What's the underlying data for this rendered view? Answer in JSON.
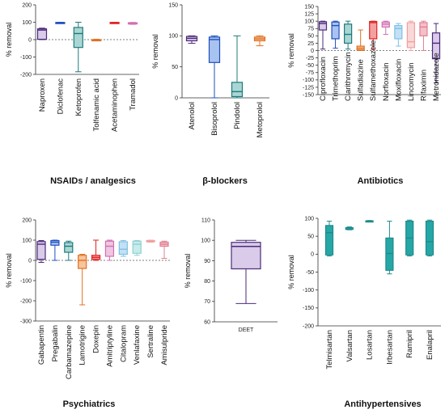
{
  "chart_data": [
    {
      "id": "nsaids",
      "type": "box",
      "title": "NSAIDs / analgesics",
      "ylabel": "% removal",
      "ylim": [
        -200,
        200
      ],
      "yticks": [
        -200,
        -100,
        0,
        100,
        200
      ],
      "zero_line": true,
      "categories": [
        "Naproxen",
        "Diclofenac",
        "Ketoprofen",
        "Tolfenamic acid",
        "Acetaminophen",
        "Tramadol"
      ],
      "boxes": [
        {
          "name": "Naproxen",
          "min": 0,
          "q1": 2,
          "median": 55,
          "q3": 62,
          "max": 66,
          "color": "#4b2a7a",
          "fill": "#d9cbe9"
        },
        {
          "name": "Diclofenac",
          "min": 94,
          "q1": 95,
          "median": 97,
          "q3": 99,
          "max": 100,
          "color": "#1f4fbf",
          "fill": "#a9c3f0"
        },
        {
          "name": "Ketoprofen",
          "min": -185,
          "q1": -45,
          "median": 35,
          "q3": 70,
          "max": 100,
          "color": "#1f7a7a",
          "fill": "#a9d6d4"
        },
        {
          "name": "Tolfenamic acid",
          "min": -6,
          "q1": -4,
          "median": -2,
          "q3": 0,
          "max": 2,
          "color": "#e07020",
          "fill": "#f7c49c"
        },
        {
          "name": "Acetaminophen",
          "min": 96,
          "q1": 97,
          "median": 98,
          "q3": 99,
          "max": 100,
          "color": "#e02020",
          "fill": "#f4a0a0"
        },
        {
          "name": "Tramadol",
          "min": 88,
          "q1": 91,
          "median": 94,
          "q3": 97,
          "max": 99,
          "color": "#d070b0",
          "fill": "#efc6e2"
        }
      ]
    },
    {
      "id": "beta",
      "type": "box",
      "title": "β-blockers",
      "ylabel": "% removal",
      "ylim": [
        0,
        150
      ],
      "yticks": [
        0,
        50,
        100,
        150
      ],
      "zero_line": false,
      "categories": [
        "Atenolol",
        "Bisoprolol",
        "Pindolol",
        "Metoprolol"
      ],
      "boxes": [
        {
          "name": "Atenolol",
          "min": 88,
          "q1": 92,
          "median": 96,
          "q3": 99,
          "max": 100,
          "color": "#4b2a7a",
          "fill": "#d9cbe9"
        },
        {
          "name": "Bisoprolol",
          "min": 0,
          "q1": 57,
          "median": 94,
          "q3": 98,
          "max": 100,
          "color": "#1f4fbf",
          "fill": "#a9c3f0"
        },
        {
          "name": "Pindolol",
          "min": 0,
          "q1": 2,
          "median": 10,
          "q3": 25,
          "max": 100,
          "color": "#1f7a7a",
          "fill": "#a9d6d4"
        },
        {
          "name": "Metoprolol",
          "min": 84,
          "q1": 92,
          "median": 95,
          "q3": 98,
          "max": 100,
          "color": "#e07020",
          "fill": "#f7c49c"
        }
      ]
    },
    {
      "id": "antibiotics",
      "type": "box",
      "title": "Antibiotics",
      "ylabel": "% removal",
      "ylim": [
        -150,
        150
      ],
      "yticks": [
        -150,
        -125,
        -100,
        -75,
        -50,
        -25,
        0,
        25,
        50,
        75,
        100,
        125,
        150
      ],
      "zero_line": true,
      "categories": [
        "Ciprofloxacin",
        "Trimethoprim",
        "Clarithromycin",
        "Sulfadiazine",
        "Sulfamethoxazole",
        "Norfloxacin",
        "Moxifloxacin",
        "Lincomycin",
        "Rifaximin",
        "Metronidazole"
      ],
      "boxes": [
        {
          "name": "Ciprofloxacin",
          "min": 5,
          "q1": 70,
          "median": 92,
          "q3": 98,
          "max": 100,
          "color": "#4b2a7a",
          "fill": "#d9cbe9"
        },
        {
          "name": "Trimethoprim",
          "min": 8,
          "q1": 40,
          "median": 85,
          "q3": 97,
          "max": 100,
          "color": "#1f4fbf",
          "fill": "#a9c3f0"
        },
        {
          "name": "Clarithromycin",
          "min": 5,
          "q1": 25,
          "median": 55,
          "q3": 90,
          "max": 100,
          "color": "#1f7a7a",
          "fill": "#a9d6d4"
        },
        {
          "name": "Sulfadiazine",
          "min": 0,
          "q1": 2,
          "median": 8,
          "q3": 15,
          "max": 70,
          "color": "#e07020",
          "fill": "#f7c49c"
        },
        {
          "name": "Sulfamethoxazole",
          "min": 5,
          "q1": 40,
          "median": 95,
          "q3": 99,
          "max": 100,
          "color": "#e02020",
          "fill": "#f4a0a0"
        },
        {
          "name": "Norfloxacin",
          "min": 55,
          "q1": 80,
          "median": 90,
          "q3": 97,
          "max": 100,
          "color": "#d070b0",
          "fill": "#efc6e2"
        },
        {
          "name": "Moxifloxacin",
          "min": 15,
          "q1": 40,
          "median": 75,
          "q3": 85,
          "max": 92,
          "color": "#7fbfe6",
          "fill": "#c3e1f4"
        },
        {
          "name": "Lincomycin",
          "min": 0,
          "q1": 10,
          "median": 30,
          "q3": 95,
          "max": 100,
          "color": "#f0a0a0",
          "fill": "#f9d8d8"
        },
        {
          "name": "Rifaximin",
          "min": 0,
          "q1": 50,
          "median": 80,
          "q3": 95,
          "max": 100,
          "color": "#e08090",
          "fill": "#f5c0c8"
        },
        {
          "name": "Metronidazole",
          "min": -110,
          "q1": -28,
          "median": 25,
          "q3": 60,
          "max": 92,
          "color": "#4b2a7a",
          "fill": "#d9cbe9"
        }
      ]
    },
    {
      "id": "psychiatrics",
      "type": "box",
      "title": "Psychiatrics",
      "ylabel": "% removal",
      "ylim": [
        -300,
        200
      ],
      "yticks": [
        -300,
        -200,
        -100,
        0,
        100,
        200
      ],
      "zero_line": true,
      "categories": [
        "Gabapentin",
        "Pregabalin",
        "Carbamazepine",
        "Lamotrigine",
        "Doxepin",
        "Amitriptyline",
        "Citalopram",
        "Venlafaxine",
        "Sertraline",
        "Amisulpride"
      ],
      "boxes": [
        {
          "name": "Gabapentin",
          "min": -10,
          "q1": 5,
          "median": 80,
          "q3": 93,
          "max": 98,
          "color": "#4b2a7a",
          "fill": "#d9cbe9"
        },
        {
          "name": "Pregabalin",
          "min": 0,
          "q1": 75,
          "median": 90,
          "q3": 98,
          "max": 100,
          "color": "#1f4fbf",
          "fill": "#a9c3f0"
        },
        {
          "name": "Carbamazepine",
          "min": 0,
          "q1": 40,
          "median": 70,
          "q3": 88,
          "max": 95,
          "color": "#1f7a7a",
          "fill": "#a9d6d4"
        },
        {
          "name": "Lamotrigine",
          "min": -220,
          "q1": -40,
          "median": 0,
          "q3": 25,
          "max": 30,
          "color": "#e07020",
          "fill": "#f7c49c"
        },
        {
          "name": "Doxepin",
          "min": 0,
          "q1": 5,
          "median": 15,
          "q3": 25,
          "max": 100,
          "color": "#e02020",
          "fill": "#f4a0a0"
        },
        {
          "name": "Amitriptyline",
          "min": 0,
          "q1": 20,
          "median": 70,
          "q3": 95,
          "max": 100,
          "color": "#d070b0",
          "fill": "#efc6e2"
        },
        {
          "name": "Citalopram",
          "min": 20,
          "q1": 30,
          "median": 55,
          "q3": 92,
          "max": 98,
          "color": "#7fbfe6",
          "fill": "#c3e1f4"
        },
        {
          "name": "Venlafaxine",
          "min": 25,
          "q1": 35,
          "median": 80,
          "q3": 95,
          "max": 98,
          "color": "#8fd0d0",
          "fill": "#c8ebeb"
        },
        {
          "name": "Sertraline",
          "min": 90,
          "q1": 92,
          "median": 95,
          "q3": 98,
          "max": 100,
          "color": "#f0a0a0",
          "fill": "#f9d8d8"
        },
        {
          "name": "Amisulpride",
          "min": 10,
          "q1": 70,
          "median": 80,
          "q3": 90,
          "max": 95,
          "color": "#e08090",
          "fill": "#f5c0c8"
        }
      ]
    },
    {
      "id": "deet",
      "type": "box",
      "title": "",
      "ylabel": "% removal",
      "ylim": [
        60,
        110
      ],
      "yticks": [
        60,
        70,
        80,
        90,
        100,
        110
      ],
      "zero_line": false,
      "categories": [
        "DEET"
      ],
      "boxes": [
        {
          "name": "DEET",
          "min": 69,
          "q1": 86,
          "median": 97,
          "q3": 99,
          "max": 100,
          "color": "#4b2a7a",
          "fill": "#d9cbe9"
        }
      ]
    },
    {
      "id": "antihypertensives",
      "type": "box",
      "title": "Antihypertensives",
      "ylabel": "% removal",
      "ylim": [
        -200,
        100
      ],
      "yticks": [
        -200,
        -150,
        -100,
        -50,
        0,
        50,
        100
      ],
      "zero_line": false,
      "categories": [
        "Telmisartan",
        "Valsartan",
        "Losartan",
        "Irbesartan",
        "Ramipril",
        "Enalapril"
      ],
      "boxes": [
        {
          "name": "Telmisartan",
          "min": -5,
          "q1": -2,
          "median": 60,
          "q3": 80,
          "max": 92,
          "color": "#1f8a8a",
          "fill": "#25a7a7"
        },
        {
          "name": "Valsartan",
          "min": 68,
          "q1": 69,
          "median": 70,
          "q3": 74,
          "max": 76,
          "color": "#1f8a8a",
          "fill": "#25a7a7"
        },
        {
          "name": "Losartan",
          "min": 90,
          "q1": 91,
          "median": 92,
          "q3": 93,
          "max": 94,
          "color": "#1f8a8a",
          "fill": "#25a7a7"
        },
        {
          "name": "Irbesartan",
          "min": -55,
          "q1": -45,
          "median": 2,
          "q3": 45,
          "max": 92,
          "color": "#1f8a8a",
          "fill": "#25a7a7"
        },
        {
          "name": "Ramipril",
          "min": -5,
          "q1": -2,
          "median": 45,
          "q3": 92,
          "max": 95,
          "color": "#1f8a8a",
          "fill": "#25a7a7"
        },
        {
          "name": "Enalapril",
          "min": -5,
          "q1": -2,
          "median": 35,
          "q3": 92,
          "max": 95,
          "color": "#1f8a8a",
          "fill": "#25a7a7"
        }
      ]
    }
  ]
}
